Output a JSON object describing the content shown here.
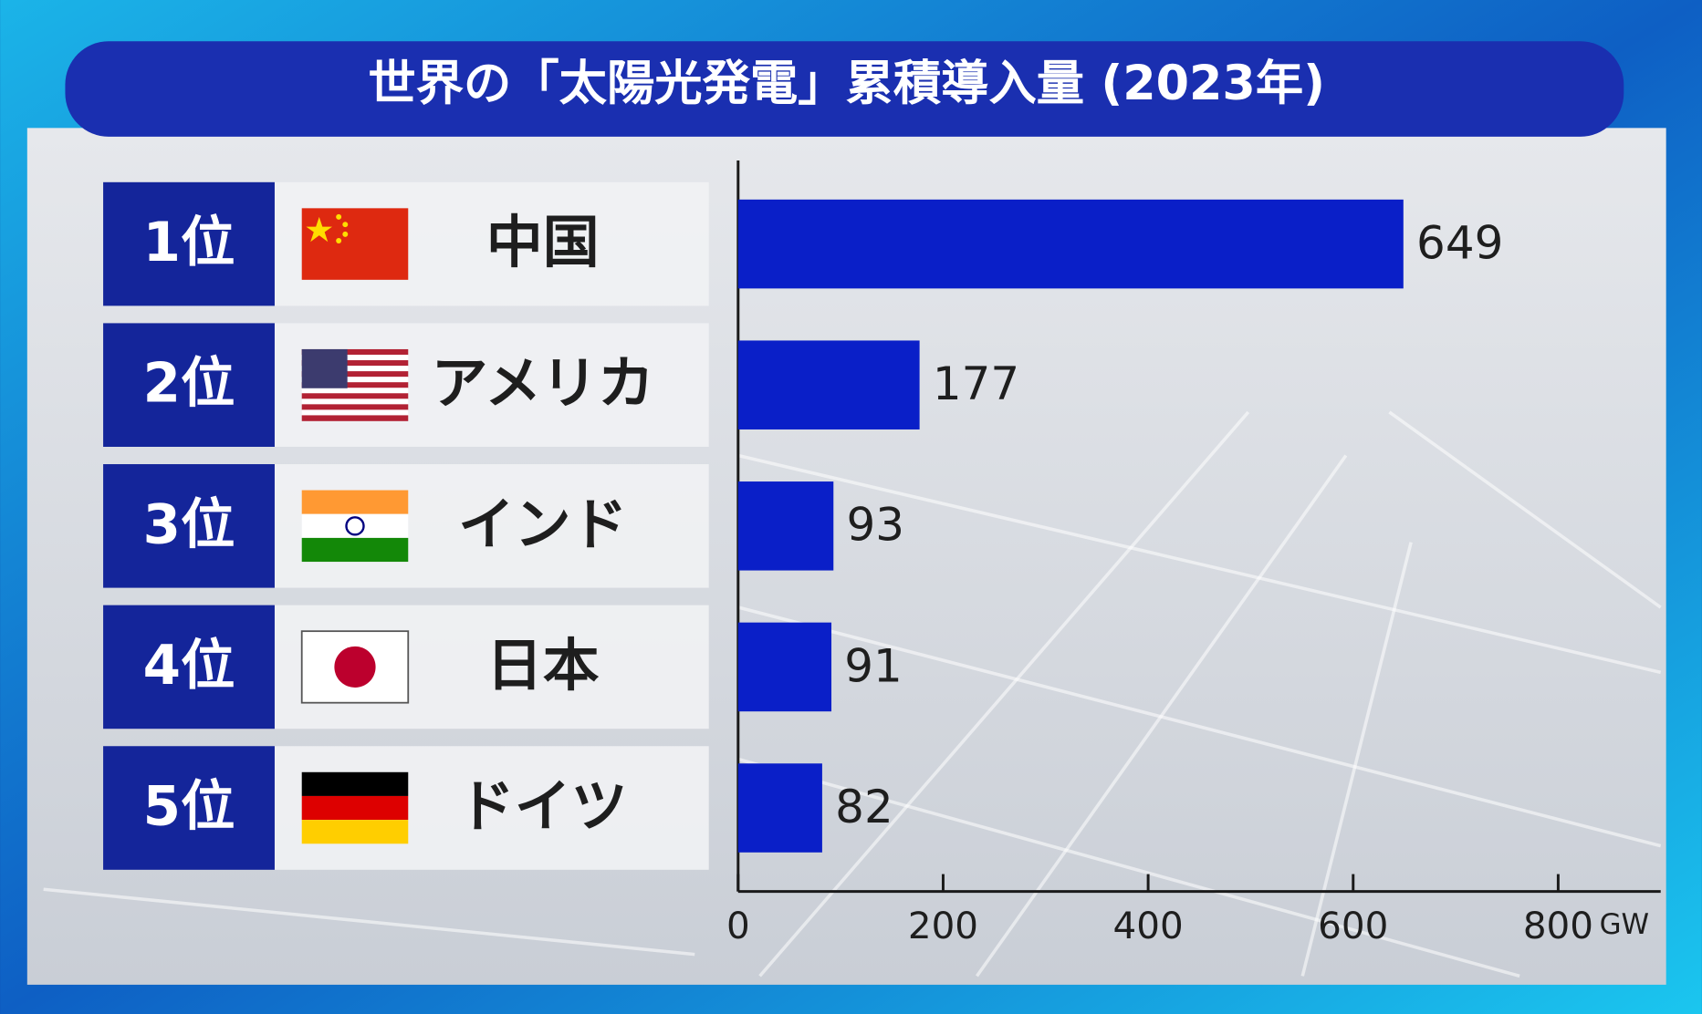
{
  "chart_data": {
    "type": "bar",
    "orientation": "horizontal",
    "title": "世界の「太陽光発電」累積導入量 (2023年)",
    "ranks": [
      "1位",
      "2位",
      "3位",
      "4位",
      "5位"
    ],
    "categories": [
      "中国",
      "アメリカ",
      "インド",
      "日本",
      "ドイツ"
    ],
    "values": [
      649,
      177,
      93,
      91,
      82
    ],
    "color": "#0a1fc8",
    "xlim": [
      0,
      900
    ],
    "xticks": [
      0,
      200,
      400,
      600,
      800
    ],
    "x_unit": "GW"
  }
}
